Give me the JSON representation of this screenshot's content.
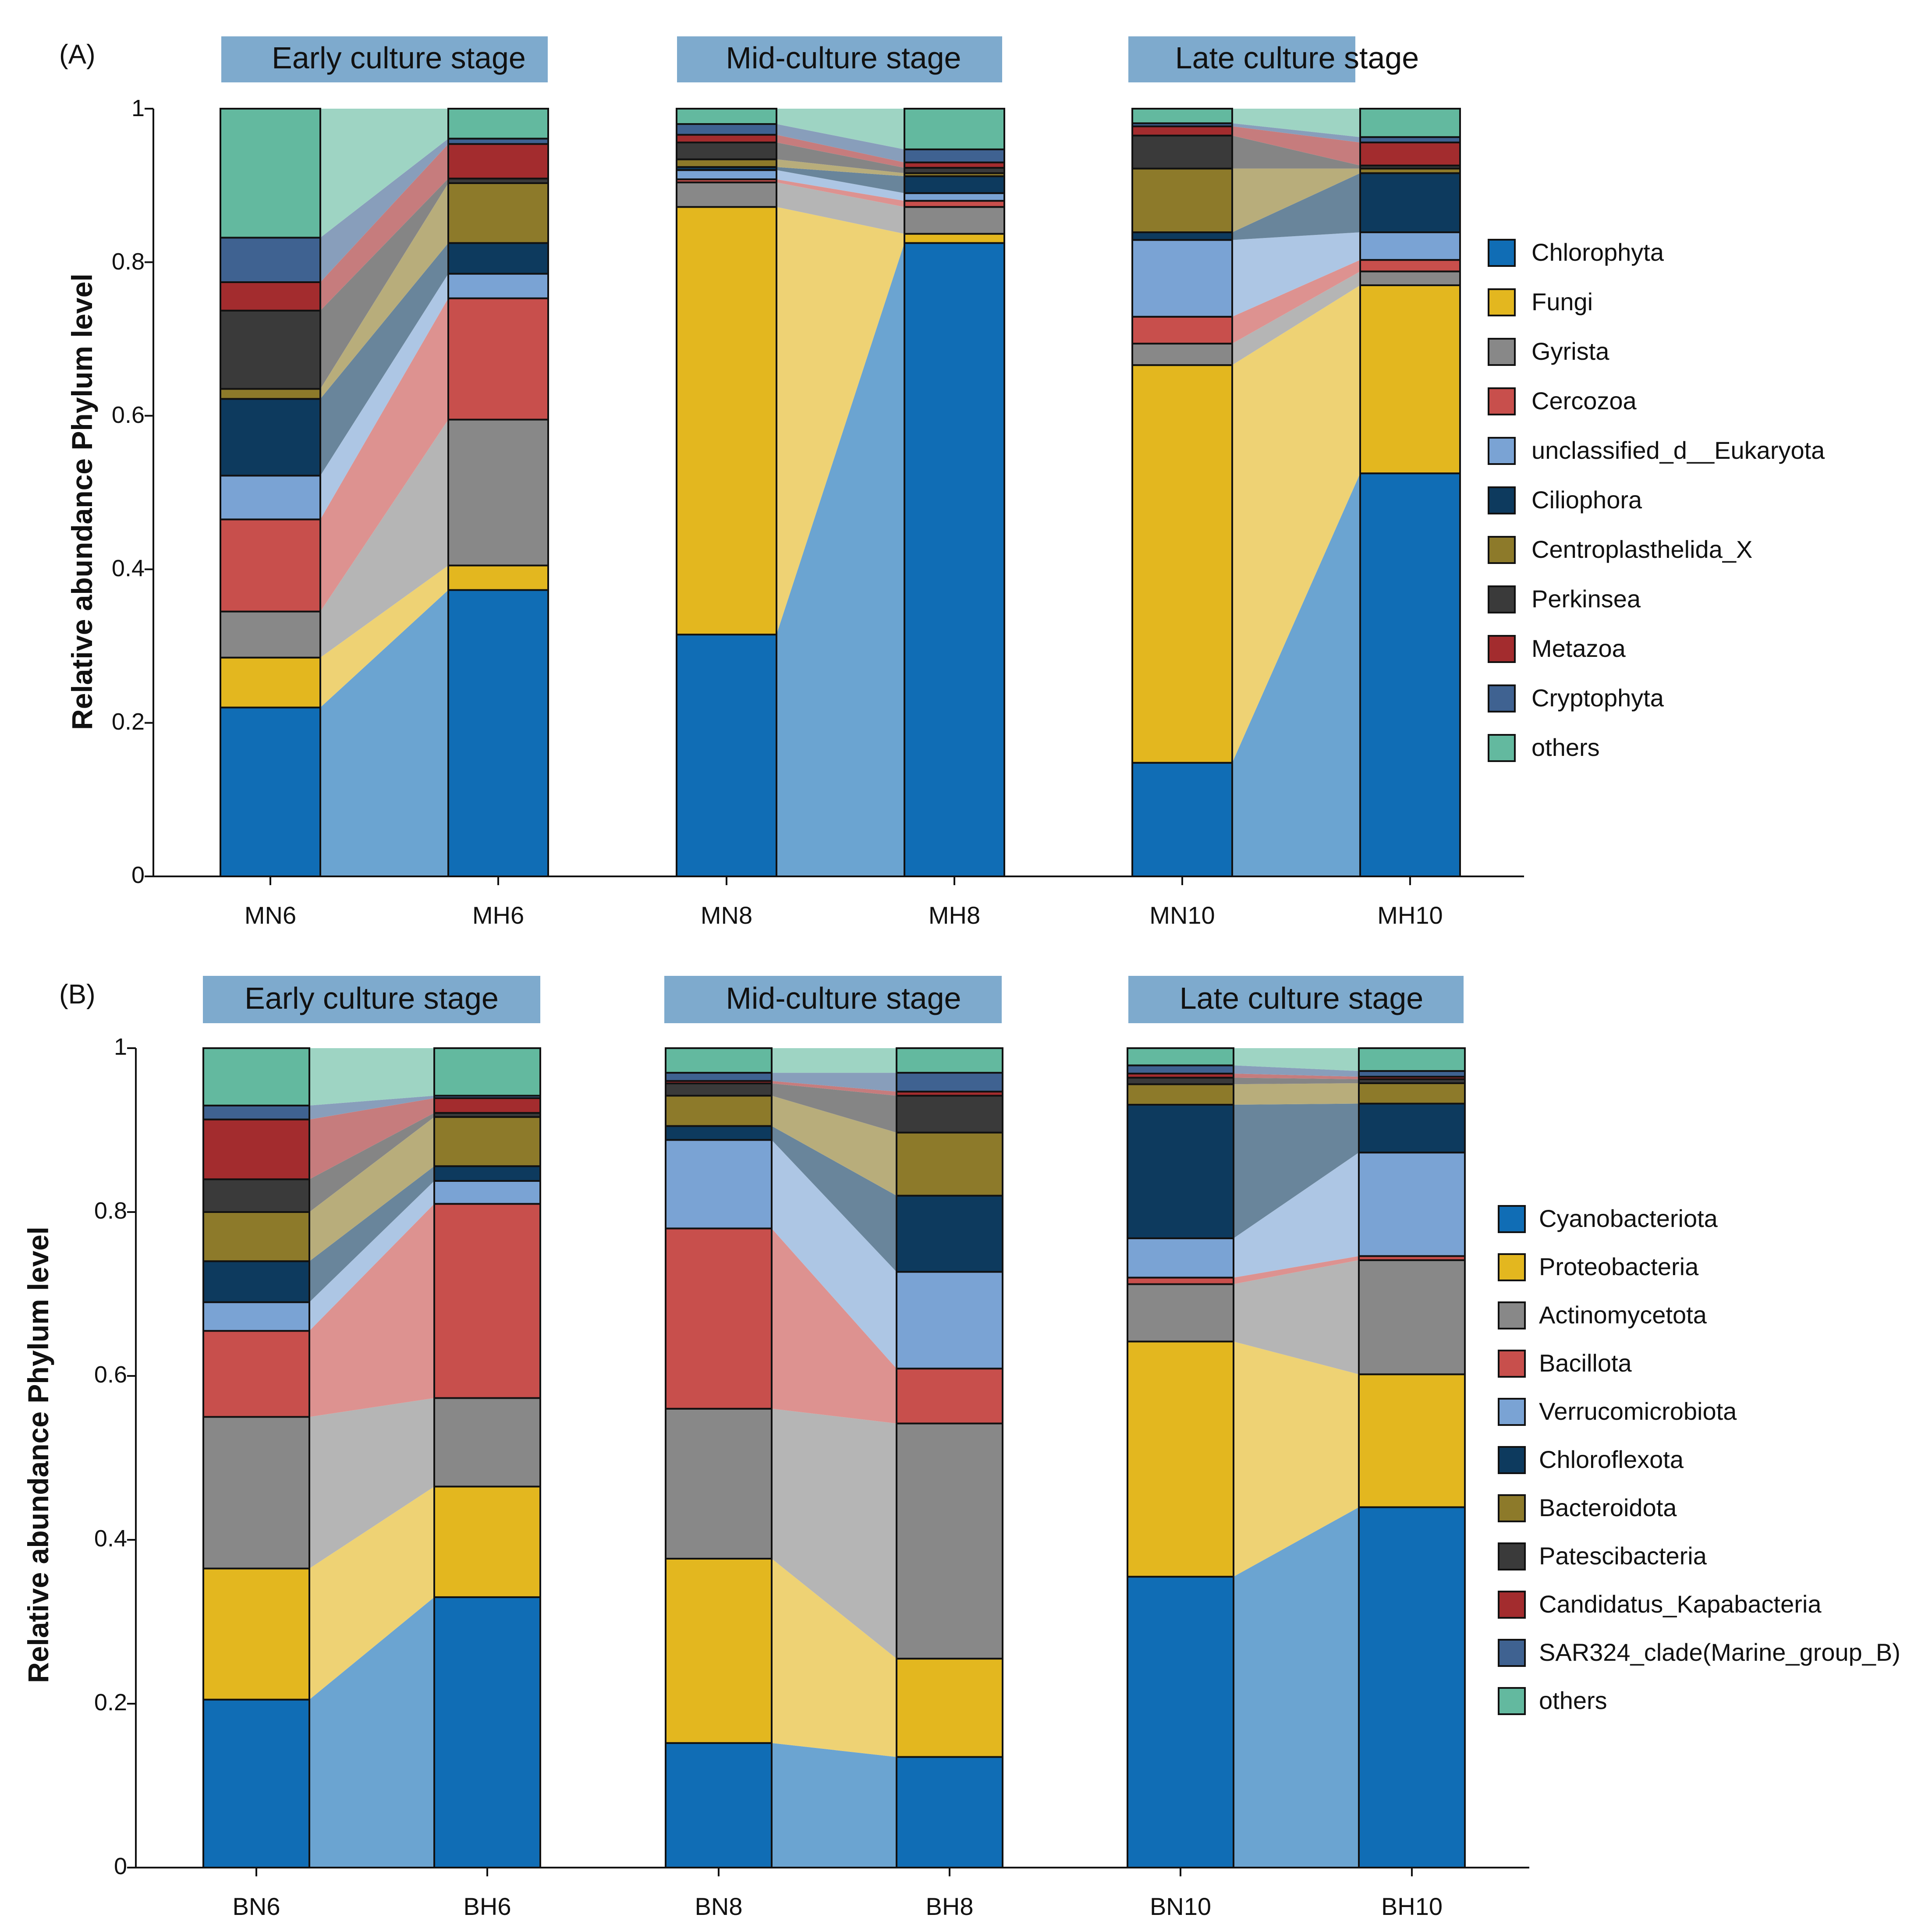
{
  "chart_data": [
    {
      "panel": "(A)",
      "type": "stacked-bar",
      "ylabel": "Relative abundance Phylum level",
      "ylim": [
        0,
        1
      ],
      "yticks": [
        0,
        0.2,
        0.4,
        0.6,
        0.8,
        1
      ],
      "yticklabels": [
        "0",
        "0.2",
        "0.4",
        "0.6",
        "0.8",
        "1"
      ],
      "stages": [
        "Early culture stage",
        "Mid-culture stage",
        "Late culture stage"
      ],
      "categories": [
        "MN6",
        "MH6",
        "MN8",
        "MH8",
        "MN10",
        "MH10"
      ],
      "series": [
        {
          "name": "Chlorophyta",
          "color": "#106db5",
          "values": [
            0.22,
            0.373,
            0.315,
            0.825,
            0.148,
            0.525
          ]
        },
        {
          "name": "Fungi",
          "color": "#e3b71f",
          "values": [
            0.065,
            0.032,
            0.557,
            0.012,
            0.518,
            0.245
          ]
        },
        {
          "name": "Gyrista",
          "color": "#888888",
          "values": [
            0.06,
            0.19,
            0.032,
            0.035,
            0.028,
            0.018
          ]
        },
        {
          "name": "Cercozoa",
          "color": "#c84f4c",
          "values": [
            0.12,
            0.158,
            0.004,
            0.008,
            0.035,
            0.015
          ]
        },
        {
          "name": "unclassified_d__Eukaryota",
          "color": "#7aa3d4",
          "values": [
            0.057,
            0.032,
            0.012,
            0.01,
            0.1,
            0.036
          ]
        },
        {
          "name": "Ciliophora",
          "color": "#0d3a5e",
          "values": [
            0.1,
            0.04,
            0.004,
            0.022,
            0.01,
            0.077
          ]
        },
        {
          "name": "Centroplasthelida_X",
          "color": "#8d7a2a",
          "values": [
            0.013,
            0.078,
            0.01,
            0.004,
            0.083,
            0.006
          ]
        },
        {
          "name": "Perkinsea",
          "color": "#3a3a3a",
          "values": [
            0.102,
            0.006,
            0.022,
            0.007,
            0.043,
            0.004
          ]
        },
        {
          "name": "Metazoa",
          "color": "#a32c2e",
          "values": [
            0.037,
            0.045,
            0.01,
            0.007,
            0.012,
            0.03
          ]
        },
        {
          "name": "Cryptophyta",
          "color": "#3f6291",
          "values": [
            0.058,
            0.007,
            0.014,
            0.017,
            0.004,
            0.007
          ]
        },
        {
          "name": "others",
          "color": "#63b99f",
          "values": [
            0.168,
            0.039,
            0.02,
            0.053,
            0.019,
            0.037
          ]
        }
      ]
    },
    {
      "panel": "(B)",
      "type": "stacked-bar",
      "ylabel": "Relative abundance Phylum level",
      "ylim": [
        0,
        1
      ],
      "yticks": [
        0,
        0.2,
        0.4,
        0.6,
        0.8,
        1
      ],
      "yticklabels": [
        "0",
        "0.2",
        "0.4",
        "0.6",
        "0.8",
        "1"
      ],
      "stages": [
        "Early culture stage",
        "Mid-culture stage",
        "Late culture stage"
      ],
      "categories": [
        "BN6",
        "BH6",
        "BN8",
        "BH8",
        "BN10",
        "BH10"
      ],
      "series": [
        {
          "name": "Cyanobacteriota",
          "color": "#106db5",
          "values": [
            0.205,
            0.33,
            0.152,
            0.135,
            0.355,
            0.442
          ]
        },
        {
          "name": "Proteobacteria",
          "color": "#e3b71f",
          "values": [
            0.16,
            0.135,
            0.225,
            0.12,
            0.287,
            0.163
          ]
        },
        {
          "name": "Actinomycetota",
          "color": "#888888",
          "values": [
            0.185,
            0.108,
            0.183,
            0.287,
            0.07,
            0.14
          ]
        },
        {
          "name": "Bacillota",
          "color": "#c84f4c",
          "values": [
            0.105,
            0.237,
            0.22,
            0.067,
            0.008,
            0.005
          ]
        },
        {
          "name": "Verrucomicrobiota",
          "color": "#7aa3d4",
          "values": [
            0.035,
            0.028,
            0.108,
            0.118,
            0.048,
            0.127
          ]
        },
        {
          "name": "Chloroflexota",
          "color": "#0d3a5e",
          "values": [
            0.05,
            0.018,
            0.017,
            0.093,
            0.163,
            0.06
          ]
        },
        {
          "name": "Bacteroidota",
          "color": "#8d7a2a",
          "values": [
            0.06,
            0.06,
            0.037,
            0.077,
            0.025,
            0.025
          ]
        },
        {
          "name": "Patescibacteria",
          "color": "#3a3a3a",
          "values": [
            0.04,
            0.005,
            0.015,
            0.045,
            0.008,
            0.005
          ]
        },
        {
          "name": "Candidatus_Kapabacteria",
          "color": "#a32c2e",
          "values": [
            0.073,
            0.018,
            0.003,
            0.005,
            0.005,
            0.003
          ]
        },
        {
          "name": "SAR324_clade(Marine_group_B)",
          "color": "#3f6291",
          "values": [
            0.017,
            0.003,
            0.01,
            0.023,
            0.01,
            0.007
          ]
        },
        {
          "name": "others",
          "color": "#63b99f",
          "values": [
            0.07,
            0.058,
            0.03,
            0.03,
            0.021,
            0.028
          ]
        }
      ]
    }
  ]
}
